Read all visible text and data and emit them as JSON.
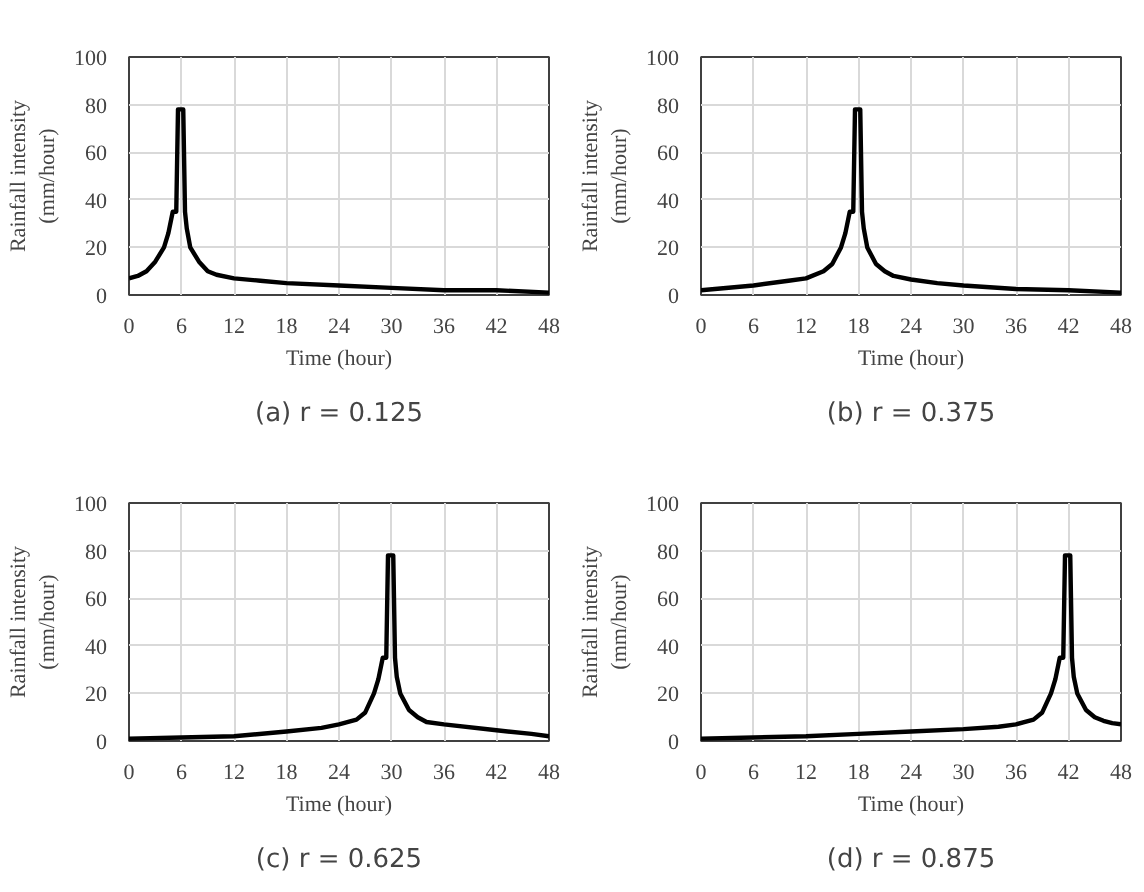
{
  "chart_data": [
    {
      "type": "line",
      "title": "(a) r = 0.125",
      "xlabel": "Time (hour)",
      "ylabel": "Rainfall intensity\n(mm/hour)",
      "xlim": [
        0,
        48
      ],
      "ylim": [
        0,
        100
      ],
      "xticks": [
        0,
        6,
        12,
        18,
        24,
        30,
        36,
        42,
        48
      ],
      "yticks": [
        0,
        20,
        40,
        60,
        80,
        100
      ],
      "grid": true,
      "marker": "none",
      "line_style": "solid",
      "series": [
        {
          "color": "#000000",
          "x": [
            0,
            1,
            2,
            3,
            4,
            4.5,
            5,
            5.4,
            5.6,
            6.2,
            6.4,
            6.6,
            7,
            8,
            9,
            10,
            12,
            15,
            18,
            24,
            30,
            36,
            42,
            48
          ],
          "values": [
            7,
            8,
            10,
            14,
            20,
            26,
            35,
            35,
            78,
            78,
            35,
            28,
            20,
            14,
            10,
            8.5,
            7,
            6,
            5,
            4,
            3,
            2,
            2,
            1
          ]
        }
      ]
    },
    {
      "type": "line",
      "title": "(b) r = 0.375",
      "xlabel": "Time (hour)",
      "ylabel": "Rainfall intensity\n(mm/hour)",
      "xlim": [
        0,
        48
      ],
      "ylim": [
        0,
        100
      ],
      "xticks": [
        0,
        6,
        12,
        18,
        24,
        30,
        36,
        42,
        48
      ],
      "yticks": [
        0,
        20,
        40,
        60,
        80,
        100
      ],
      "grid": true,
      "marker": "none",
      "line_style": "solid",
      "series": [
        {
          "color": "#000000",
          "x": [
            0,
            6,
            10,
            12,
            14,
            15,
            16,
            16.5,
            17,
            17.4,
            17.6,
            18.2,
            18.4,
            18.6,
            19,
            20,
            21,
            22,
            24,
            27,
            30,
            36,
            42,
            48
          ],
          "values": [
            2,
            4,
            6,
            7,
            10,
            13,
            20,
            26,
            35,
            35,
            78,
            78,
            35,
            28,
            20,
            13,
            10,
            8,
            6.5,
            5,
            4,
            2.5,
            2,
            1
          ]
        }
      ]
    },
    {
      "type": "line",
      "title": "(c) r = 0.625",
      "xlabel": "Time (hour)",
      "ylabel": "Rainfall intensity\n(mm/hour)",
      "xlim": [
        0,
        48
      ],
      "ylim": [
        0,
        100
      ],
      "xticks": [
        0,
        6,
        12,
        18,
        24,
        30,
        36,
        42,
        48
      ],
      "yticks": [
        0,
        20,
        40,
        60,
        80,
        100
      ],
      "grid": true,
      "marker": "none",
      "line_style": "solid",
      "series": [
        {
          "color": "#000000",
          "x": [
            0,
            6,
            12,
            18,
            22,
            24,
            26,
            27,
            28,
            28.5,
            29,
            29.4,
            29.6,
            30.2,
            30.4,
            30.6,
            31,
            32,
            33,
            34,
            36,
            42,
            46,
            48
          ],
          "values": [
            1,
            1.5,
            2,
            4,
            5.5,
            7,
            9,
            12,
            20,
            26,
            35,
            35,
            78,
            78,
            35,
            27,
            20,
            13,
            10,
            8,
            7,
            4.5,
            3,
            2
          ]
        }
      ]
    },
    {
      "type": "line",
      "title": "(d) r = 0.875",
      "xlabel": "Time (hour)",
      "ylabel": "Rainfall intensity\n(mm/hour)",
      "xlim": [
        0,
        48
      ],
      "ylim": [
        0,
        100
      ],
      "xticks": [
        0,
        6,
        12,
        18,
        24,
        30,
        36,
        42,
        48
      ],
      "yticks": [
        0,
        20,
        40,
        60,
        80,
        100
      ],
      "grid": true,
      "marker": "none",
      "line_style": "solid",
      "series": [
        {
          "color": "#000000",
          "x": [
            0,
            6,
            12,
            18,
            24,
            30,
            34,
            36,
            38,
            39,
            40,
            40.5,
            41,
            41.4,
            41.6,
            42.2,
            42.4,
            42.6,
            43,
            44,
            45,
            46,
            47,
            48
          ],
          "values": [
            1,
            1.5,
            2,
            3,
            4,
            5,
            6,
            7,
            9,
            12,
            20,
            26,
            35,
            35,
            78,
            78,
            35,
            27,
            20,
            13,
            10,
            8.5,
            7.5,
            7
          ]
        }
      ]
    }
  ]
}
